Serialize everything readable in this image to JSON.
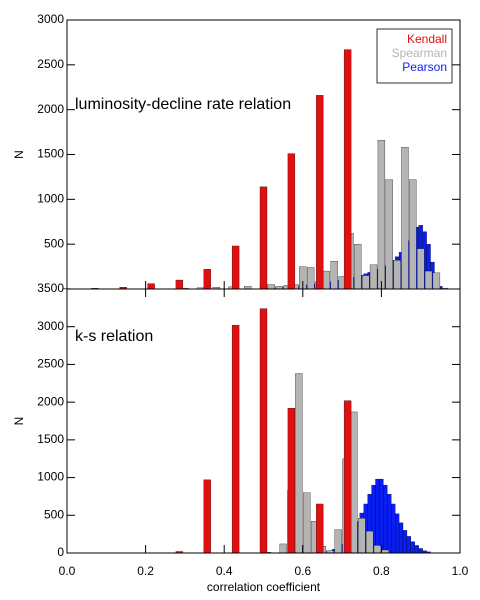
{
  "chart_data": [
    {
      "type": "bar",
      "annotation": "luminosity-decline rate relation",
      "ylabel": "N",
      "xlim": [
        0,
        1
      ],
      "ylim": [
        0,
        3000
      ],
      "yticks": [
        500,
        1000,
        1500,
        2000,
        2500,
        3000
      ],
      "legend": "upper right",
      "series": [
        {
          "name": "Kendall",
          "color": "#e01010",
          "x": [
            0.0,
            0.071,
            0.143,
            0.214,
            0.286,
            0.357,
            0.429,
            0.5,
            0.571,
            0.643,
            0.714
          ],
          "values": [
            5,
            8,
            20,
            60,
            100,
            220,
            480,
            1140,
            1510,
            2160,
            2670
          ]
        },
        {
          "name": "Spearman",
          "color": "#b4b4b4",
          "x": [
            0.3,
            0.34,
            0.38,
            0.42,
            0.46,
            0.5,
            0.52,
            0.54,
            0.56,
            0.58,
            0.6,
            0.62,
            0.64,
            0.66,
            0.68,
            0.7,
            0.72,
            0.74,
            0.76,
            0.78,
            0.8,
            0.82,
            0.84,
            0.86,
            0.88,
            0.9,
            0.92,
            0.94,
            0.96
          ],
          "values": [
            10,
            15,
            20,
            25,
            30,
            60,
            50,
            30,
            40,
            50,
            250,
            240,
            80,
            200,
            310,
            140,
            620,
            500,
            150,
            270,
            1660,
            1220,
            320,
            1580,
            1220,
            450,
            200,
            180,
            10
          ]
        },
        {
          "name": "Pearson",
          "color": "#0a1ef0",
          "x": [
            0.5,
            0.51,
            0.52,
            0.53,
            0.54,
            0.55,
            0.56,
            0.57,
            0.58,
            0.59,
            0.6,
            0.61,
            0.62,
            0.63,
            0.64,
            0.65,
            0.66,
            0.67,
            0.68,
            0.69,
            0.7,
            0.71,
            0.72,
            0.73,
            0.74,
            0.75,
            0.76,
            0.77,
            0.78,
            0.79,
            0.8,
            0.81,
            0.82,
            0.83,
            0.84,
            0.85,
            0.86,
            0.87,
            0.88,
            0.89,
            0.9,
            0.91,
            0.92,
            0.93,
            0.94,
            0.95
          ],
          "values": [
            10,
            10,
            15,
            15,
            20,
            20,
            25,
            25,
            30,
            35,
            40,
            45,
            50,
            55,
            60,
            65,
            70,
            80,
            85,
            95,
            100,
            110,
            120,
            130,
            140,
            155,
            170,
            185,
            200,
            220,
            240,
            260,
            290,
            320,
            360,
            410,
            470,
            540,
            620,
            690,
            710,
            640,
            500,
            300,
            120,
            30
          ]
        }
      ]
    },
    {
      "type": "bar",
      "annotation": "k-s relation",
      "ylabel": "N",
      "xlabel": "correlation coefficient",
      "xlim": [
        0,
        1
      ],
      "xticks": [
        {
          "value": 0,
          "label": "0.0"
        },
        0.2,
        0.4,
        0.6,
        0.8,
        {
          "value": 1,
          "label": "1.0"
        }
      ],
      "ylim": [
        0,
        3500
      ],
      "yticks": [
        0,
        500,
        1000,
        1500,
        2000,
        2500,
        3000,
        3500
      ],
      "series": [
        {
          "name": "Kendall",
          "color": "#e01010",
          "x": [
            0.286,
            0.357,
            0.429,
            0.5,
            0.571,
            0.643,
            0.714
          ],
          "values": [
            20,
            970,
            3020,
            3240,
            1920,
            650,
            2020
          ]
        },
        {
          "name": "Spearman",
          "color": "#b4b4b4",
          "x": [
            0.51,
            0.55,
            0.57,
            0.59,
            0.61,
            0.63,
            0.65,
            0.67,
            0.69,
            0.71,
            0.73,
            0.75,
            0.77,
            0.79,
            0.81
          ],
          "values": [
            10,
            120,
            830,
            2380,
            800,
            420,
            90,
            30,
            310,
            1250,
            1870,
            460,
            290,
            100,
            40
          ]
        },
        {
          "name": "Pearson",
          "color": "#0a1ef0",
          "x": [
            0.64,
            0.65,
            0.66,
            0.67,
            0.68,
            0.69,
            0.7,
            0.71,
            0.72,
            0.73,
            0.74,
            0.75,
            0.76,
            0.77,
            0.78,
            0.79,
            0.8,
            0.81,
            0.82,
            0.83,
            0.84,
            0.85,
            0.86,
            0.87,
            0.88,
            0.89,
            0.9,
            0.91,
            0.92
          ],
          "values": [
            10,
            15,
            20,
            30,
            50,
            80,
            120,
            170,
            230,
            320,
            420,
            530,
            650,
            780,
            900,
            980,
            980,
            900,
            780,
            650,
            520,
            400,
            300,
            220,
            150,
            100,
            60,
            30,
            15
          ]
        }
      ]
    }
  ]
}
